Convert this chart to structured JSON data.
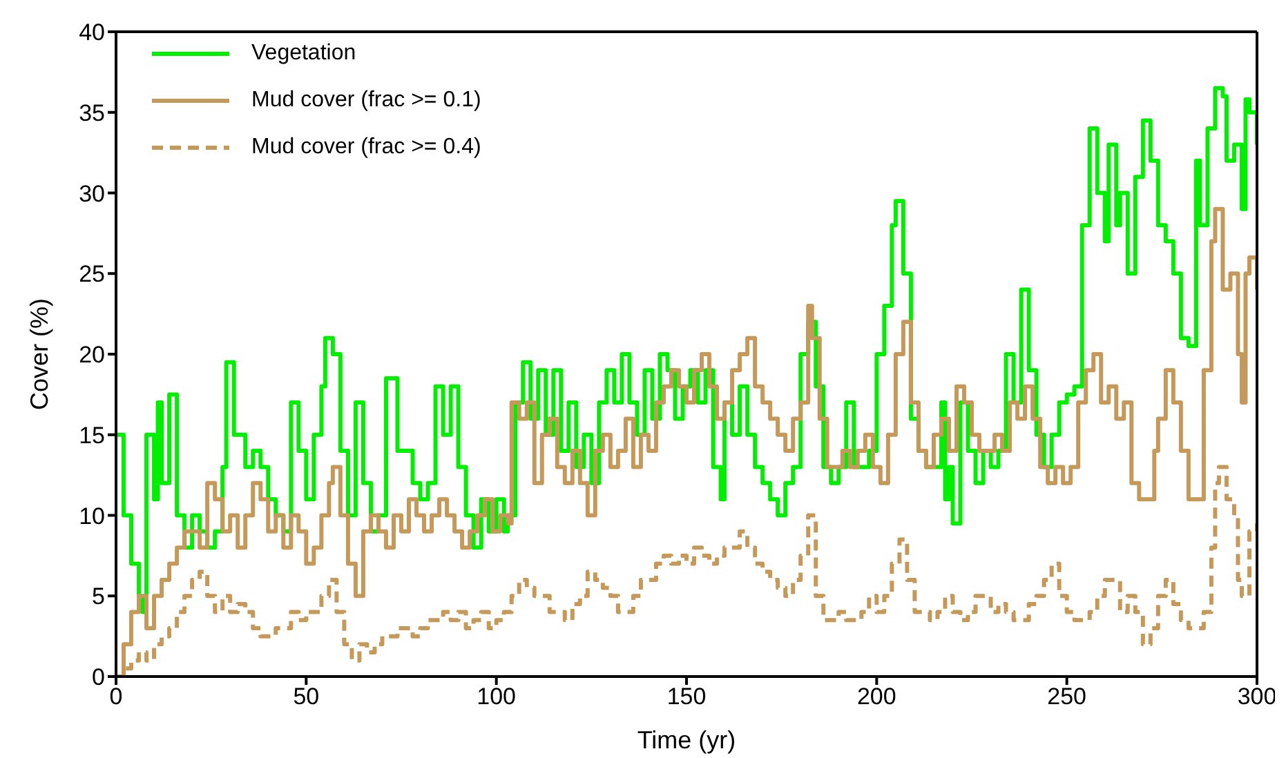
{
  "chart_data": {
    "type": "step",
    "xlabel": "Time (yr)",
    "ylabel": "Cover (%)",
    "xlim": [
      0,
      300
    ],
    "ylim": [
      0,
      40
    ],
    "xticks": [
      0,
      50,
      100,
      150,
      200,
      250,
      300
    ],
    "yticks": [
      0,
      5,
      10,
      15,
      20,
      25,
      30,
      35,
      40
    ],
    "legend": "top left",
    "marker": "none",
    "series": [
      {
        "name": "Vegetation",
        "color": "#00ee00",
        "line_style": "solid",
        "x": [
          0,
          2,
          4,
          6,
          7,
          8,
          10,
          11,
          12,
          14,
          16,
          18,
          20,
          22,
          24,
          26,
          28,
          29,
          31,
          34,
          36,
          38,
          40,
          42,
          44,
          46,
          48,
          50,
          52,
          54,
          55,
          57,
          59,
          61,
          63,
          65,
          67,
          69,
          71,
          74,
          78,
          80,
          82,
          84,
          86,
          88,
          90,
          92,
          94,
          96,
          98,
          100,
          102,
          103,
          105,
          107,
          109,
          111,
          113,
          115,
          117,
          119,
          121,
          123,
          125,
          127,
          129,
          131,
          133,
          135,
          137,
          139,
          141,
          143,
          145,
          147,
          149,
          151,
          153,
          155,
          157,
          159,
          160,
          162,
          164,
          166,
          168,
          170,
          172,
          174,
          176,
          178,
          180,
          182,
          184,
          186,
          188,
          190,
          192,
          194,
          196,
          198,
          200,
          202,
          204,
          205,
          207,
          209,
          211,
          213,
          215,
          217,
          218,
          219,
          220,
          222,
          224,
          226,
          228,
          230,
          232,
          234,
          236,
          238,
          240,
          242,
          244,
          246,
          248,
          250,
          252,
          254,
          256,
          258,
          260,
          261,
          263,
          264,
          266,
          268,
          270,
          272,
          274,
          276,
          278,
          280,
          282,
          284,
          285,
          287,
          289,
          291,
          292,
          294,
          296,
          297,
          298,
          300
        ],
        "values": [
          15,
          10,
          7,
          5,
          4,
          15,
          11,
          17,
          12,
          17.5,
          10,
          8,
          10,
          9,
          8,
          9,
          13,
          19.5,
          15,
          13,
          14,
          13,
          11,
          10,
          9,
          17,
          14,
          11,
          15,
          18,
          21,
          20,
          14,
          10,
          17,
          12,
          9,
          10,
          18.5,
          14,
          12,
          11,
          12,
          18,
          15,
          18,
          13,
          10,
          8,
          11,
          9,
          11,
          9,
          10,
          17,
          19.5,
          16,
          19,
          15,
          19,
          14,
          17,
          13,
          15,
          12,
          17,
          19,
          17,
          20,
          17,
          15,
          19,
          16,
          20,
          19,
          16,
          18,
          19,
          17,
          19,
          13,
          11,
          17,
          15,
          18,
          15,
          13,
          12,
          11,
          10,
          12,
          13,
          20,
          22,
          18,
          13,
          12,
          13,
          17,
          13,
          13,
          14,
          20,
          23,
          28,
          29.5,
          25,
          16,
          14,
          13,
          13,
          17,
          11,
          13,
          9.5,
          17,
          14,
          12,
          14,
          13,
          14,
          20,
          17,
          24,
          19,
          15,
          13,
          15,
          17,
          17.5,
          18,
          28,
          34,
          30,
          27,
          33,
          28,
          30,
          25,
          31,
          34.5,
          32,
          28,
          27,
          25,
          21,
          20.5,
          32,
          28,
          34,
          36.5,
          36,
          32,
          33,
          29,
          35.8,
          35,
          33
        ]
      },
      {
        "name": "Mud cover (frac >= 0.1)",
        "color": "#c4995a",
        "line_style": "solid",
        "x": [
          0,
          2,
          4,
          6,
          8,
          10,
          12,
          14,
          16,
          18,
          20,
          22,
          24,
          26,
          28,
          30,
          32,
          34,
          36,
          38,
          40,
          42,
          44,
          46,
          48,
          50,
          52,
          54,
          56,
          57,
          59,
          61,
          63,
          65,
          67,
          69,
          71,
          73,
          75,
          77,
          79,
          81,
          83,
          85,
          87,
          89,
          91,
          93,
          95,
          97,
          99,
          101,
          103,
          104,
          106,
          108,
          110,
          112,
          114,
          116,
          118,
          120,
          122,
          124,
          126,
          128,
          130,
          132,
          134,
          136,
          138,
          140,
          142,
          144,
          146,
          148,
          150,
          152,
          154,
          156,
          158,
          160,
          162,
          164,
          166,
          168,
          170,
          172,
          174,
          176,
          178,
          180,
          182,
          183,
          185,
          187,
          189,
          191,
          193,
          195,
          197,
          199,
          201,
          203,
          205,
          207,
          209,
          211,
          213,
          215,
          217,
          219,
          221,
          223,
          225,
          227,
          229,
          231,
          233,
          235,
          237,
          239,
          241,
          243,
          245,
          247,
          249,
          251,
          253,
          255,
          257,
          259,
          261,
          263,
          265,
          267,
          269,
          271,
          273,
          274,
          276,
          278,
          280,
          282,
          284,
          286,
          288,
          289,
          291,
          293,
          295,
          296,
          297,
          298,
          300
        ],
        "values": [
          0,
          2,
          4,
          5,
          3,
          5,
          6,
          7,
          8,
          9,
          9,
          8,
          12,
          11,
          9,
          10,
          8,
          10,
          12,
          11,
          9,
          10,
          8,
          10,
          9,
          7,
          8,
          10,
          12,
          13,
          10,
          7,
          5,
          9,
          10,
          9,
          8,
          10,
          9,
          11,
          10,
          9,
          10,
          11,
          10,
          9,
          8,
          9,
          10,
          11,
          9,
          10,
          9.5,
          17,
          16,
          17,
          12,
          15,
          16,
          13,
          12,
          14,
          12,
          10,
          14,
          15,
          13,
          14,
          16,
          13,
          15,
          14,
          17,
          18,
          19,
          18,
          17,
          19,
          20,
          18,
          16,
          17,
          19,
          20,
          21,
          18,
          17,
          16,
          15,
          14,
          16,
          17,
          23,
          21,
          16,
          13,
          13,
          14,
          13,
          14,
          15,
          13,
          12,
          15,
          20,
          22,
          17,
          14,
          13,
          15,
          16,
          14,
          18,
          17,
          15,
          14,
          14,
          15,
          14,
          17,
          16,
          18,
          16,
          13,
          12,
          13,
          12,
          13,
          17,
          19,
          20,
          17,
          18,
          16,
          17,
          12,
          11,
          11,
          14,
          16,
          19,
          17,
          14,
          11,
          11,
          19,
          27,
          29,
          24,
          25,
          20,
          17,
          25,
          26,
          24
        ]
      },
      {
        "name": "Mud cover (frac >= 0.4)",
        "color": "#c4995a",
        "line_style": "dashed",
        "x": [
          0,
          2,
          4,
          6,
          8,
          10,
          12,
          14,
          16,
          18,
          20,
          22,
          24,
          26,
          28,
          30,
          32,
          34,
          36,
          38,
          40,
          42,
          44,
          46,
          48,
          50,
          52,
          54,
          56,
          58,
          60,
          62,
          64,
          66,
          68,
          70,
          72,
          74,
          76,
          78,
          80,
          82,
          84,
          86,
          88,
          90,
          92,
          94,
          96,
          98,
          100,
          102,
          104,
          106,
          108,
          110,
          112,
          114,
          116,
          118,
          120,
          122,
          124,
          126,
          128,
          130,
          132,
          134,
          136,
          138,
          140,
          142,
          144,
          146,
          148,
          150,
          152,
          154,
          156,
          158,
          160,
          162,
          164,
          166,
          168,
          170,
          172,
          174,
          176,
          178,
          180,
          182,
          184,
          186,
          188,
          190,
          192,
          194,
          196,
          198,
          200,
          202,
          204,
          206,
          208,
          210,
          212,
          214,
          216,
          218,
          220,
          222,
          224,
          226,
          228,
          230,
          232,
          234,
          236,
          238,
          240,
          242,
          244,
          246,
          248,
          250,
          252,
          254,
          256,
          258,
          260,
          262,
          264,
          266,
          268,
          270,
          272,
          274,
          276,
          278,
          280,
          282,
          284,
          286,
          288,
          289,
          290,
          292,
          294,
          295,
          296,
          298,
          300
        ],
        "values": [
          0,
          0.5,
          1,
          1.5,
          1,
          2,
          2.5,
          3,
          4,
          5,
          6,
          6.5,
          5,
          4,
          5,
          4,
          4.5,
          4,
          3,
          2.5,
          2.5,
          3,
          3,
          4,
          3.5,
          4,
          4,
          5,
          6,
          4,
          2,
          1,
          2,
          1.5,
          2,
          2.5,
          2.5,
          3,
          3,
          2.5,
          3,
          3.5,
          3.5,
          4,
          3.5,
          4,
          3,
          3.5,
          4,
          3,
          3.5,
          4,
          5,
          6,
          5.5,
          5,
          5,
          4,
          4,
          3.5,
          4.5,
          5,
          6.5,
          6,
          5.5,
          5,
          4,
          4,
          5,
          6,
          6,
          7,
          7.5,
          7,
          7.5,
          7,
          8,
          7.5,
          7,
          7.5,
          8,
          8,
          9,
          8,
          7,
          6.5,
          6,
          5.5,
          5,
          6,
          7.5,
          10,
          5,
          3.5,
          3.5,
          4,
          3.5,
          3.5,
          4,
          5,
          4,
          5,
          7,
          8.5,
          6,
          4,
          4,
          3.5,
          4,
          5,
          4,
          3.5,
          4,
          5,
          5,
          4,
          4.5,
          4,
          3.5,
          3.5,
          4.5,
          5,
          6,
          7,
          5,
          4,
          3.5,
          3.5,
          4,
          5,
          6,
          6,
          4,
          5,
          4,
          2,
          3,
          5,
          6,
          4.5,
          3.5,
          3,
          3,
          4,
          8,
          12,
          13,
          11,
          10,
          6,
          5,
          9,
          9.5
        ]
      }
    ]
  }
}
